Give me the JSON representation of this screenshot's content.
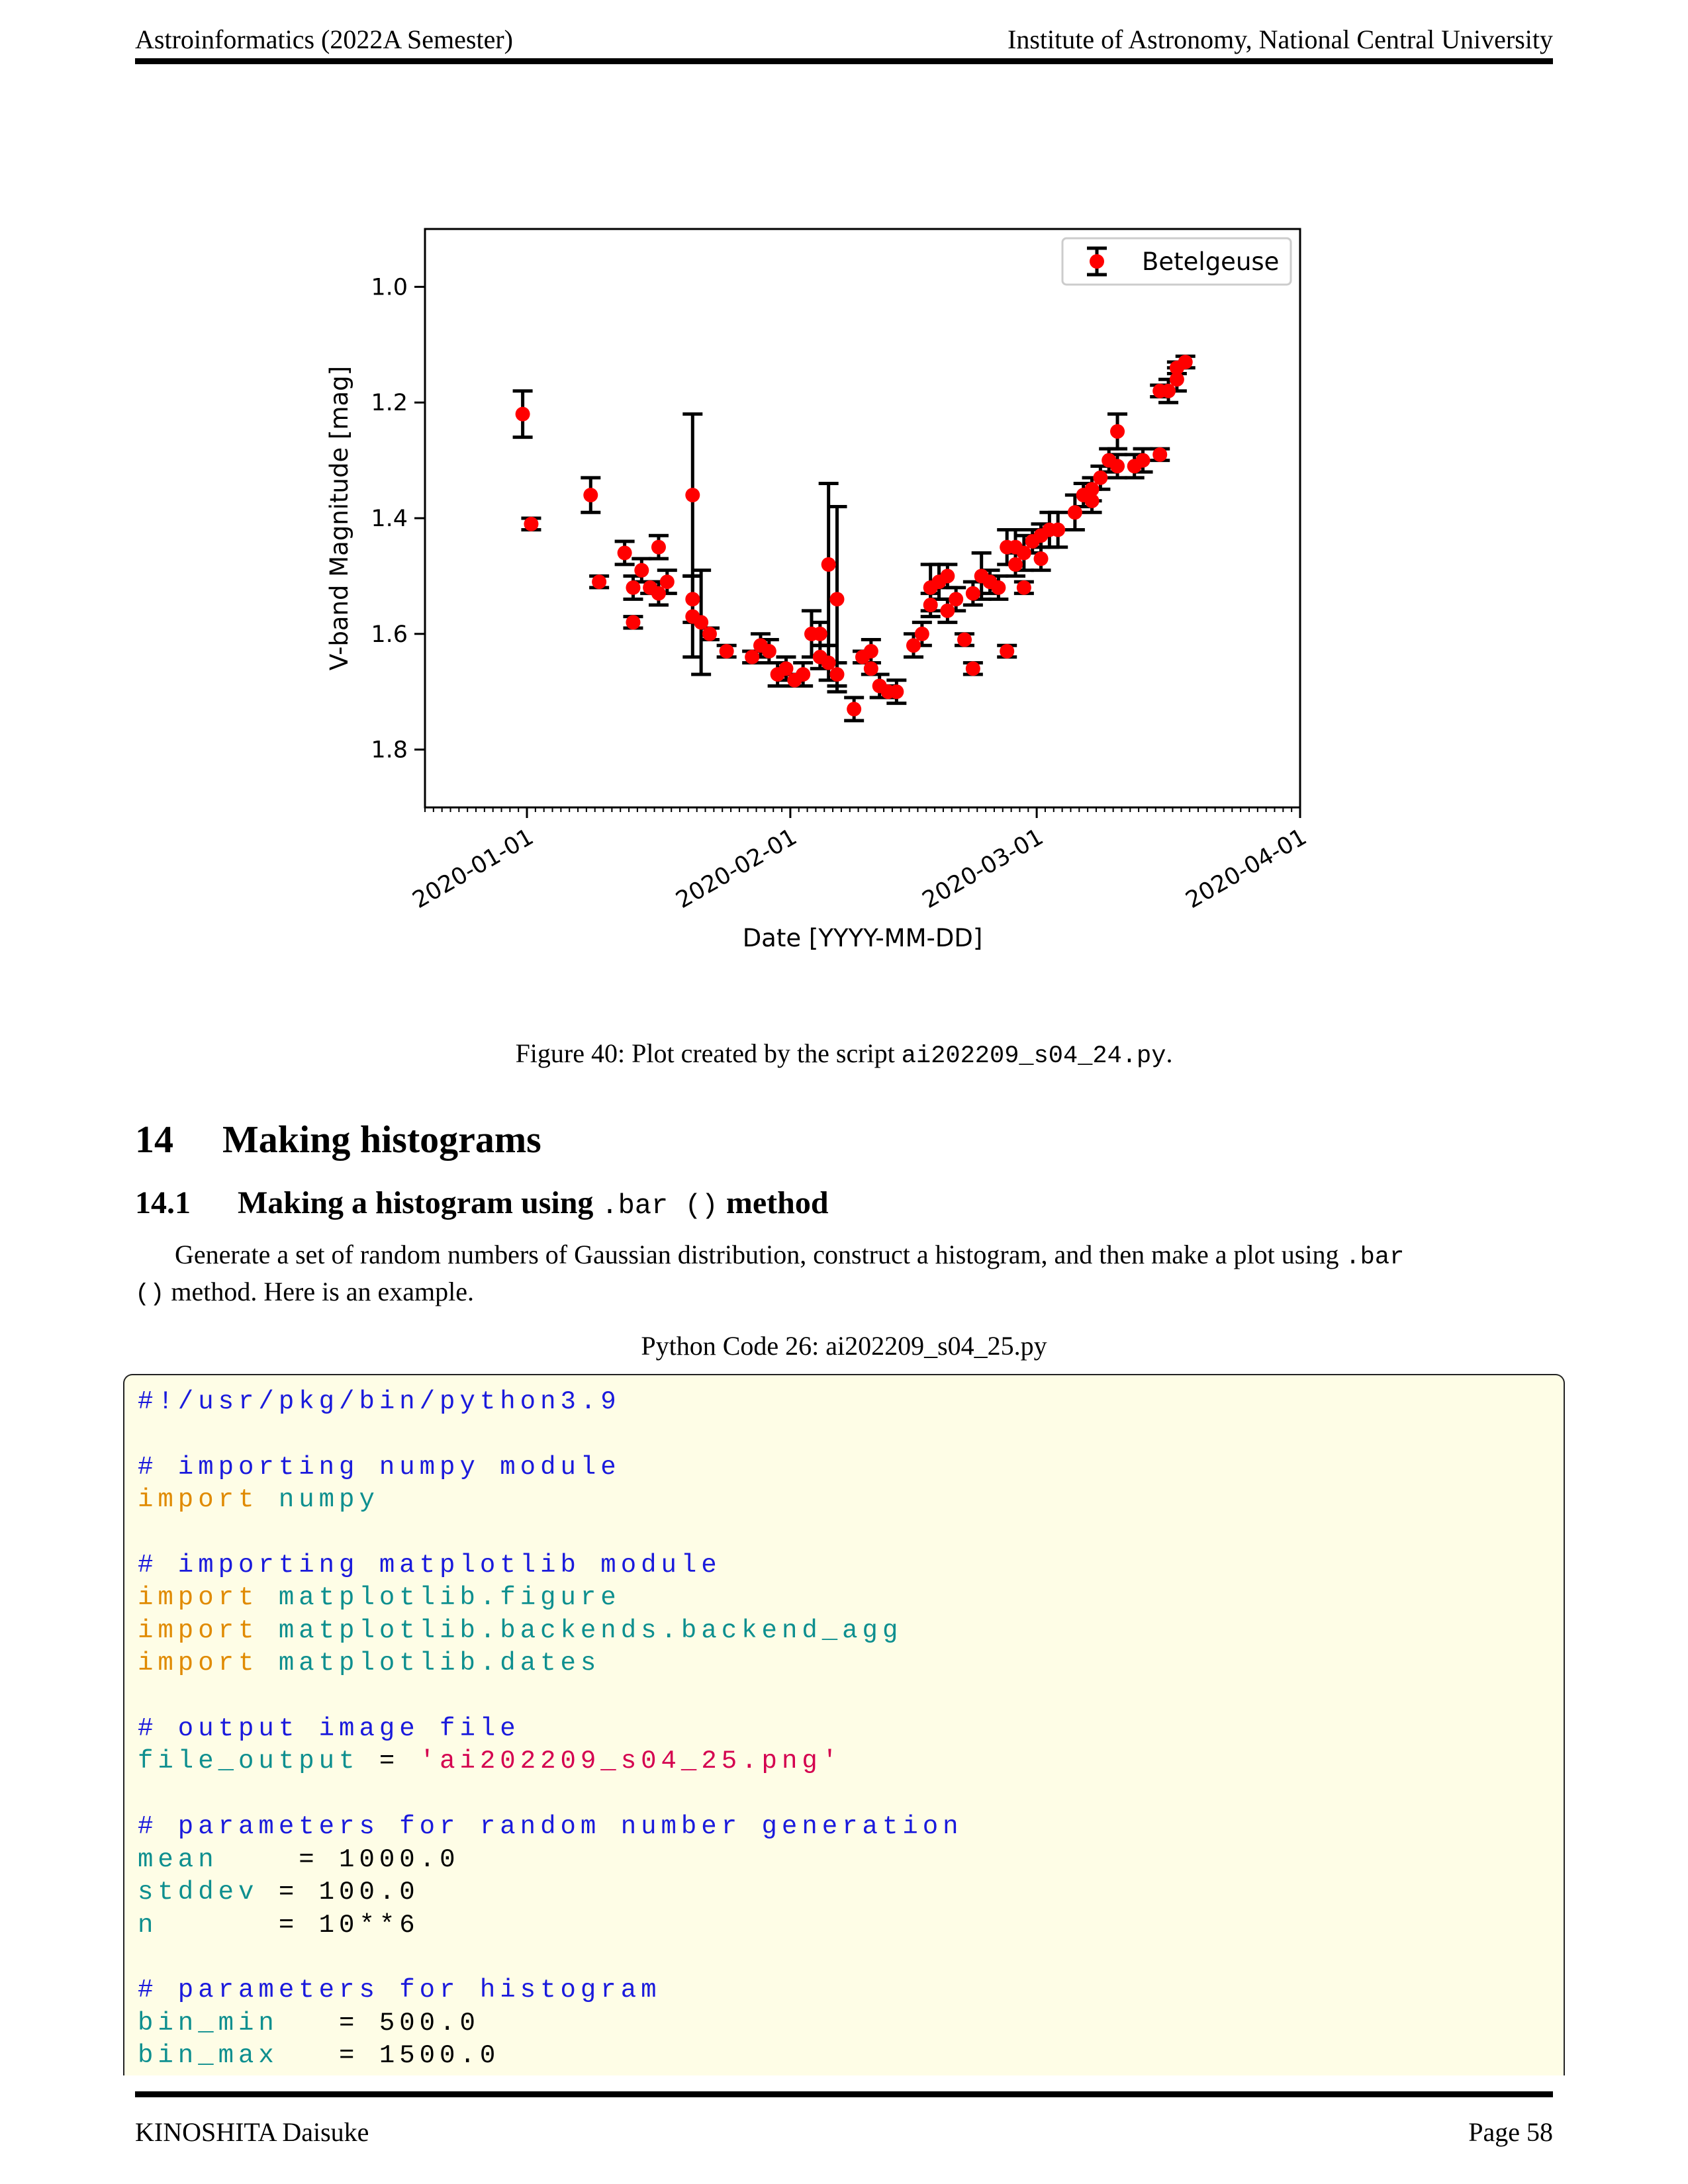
{
  "header": {
    "left": "Astroinformatics (2022A Semester)",
    "right": "Institute of Astronomy, National Central University"
  },
  "figure": {
    "caption_prefix": "Figure 40: Plot created by the script ",
    "caption_script": "ai202209_s04_24.py",
    "caption_suffix": "."
  },
  "chart_data": {
    "type": "scatter",
    "title": "",
    "xlabel": "Date [YYYY-MM-DD]",
    "ylabel": "V-band Magnitude [mag]",
    "x_ticks": [
      "2020-01-01",
      "2020-02-01",
      "2020-03-01",
      "2020-04-01"
    ],
    "y_ticks": [
      "1.0",
      "1.2",
      "1.4",
      "1.6",
      "1.8"
    ],
    "xlim": [
      "2019-12-20",
      "2020-04-01"
    ],
    "ylim": [
      1.9,
      0.9
    ],
    "y_inverted": true,
    "grid": false,
    "legend_position": "top-right",
    "marker_color": "#ff0000",
    "errorbar_color": "#000000",
    "series": [
      {
        "name": "Betelgeuse",
        "points": [
          {
            "x": "2019-12-31",
            "y": 1.22,
            "err": 0.04
          },
          {
            "x": "2020-01-01",
            "y": 1.41,
            "err": 0.01
          },
          {
            "x": "2020-01-08",
            "y": 1.36,
            "err": 0.03
          },
          {
            "x": "2020-01-09",
            "y": 1.51,
            "err": 0.01
          },
          {
            "x": "2020-01-12",
            "y": 1.46,
            "err": 0.02
          },
          {
            "x": "2020-01-13",
            "y": 1.58,
            "err": 0.01
          },
          {
            "x": "2020-01-13",
            "y": 1.52,
            "err": 0.02
          },
          {
            "x": "2020-01-14",
            "y": 1.49,
            "err": 0.02
          },
          {
            "x": "2020-01-15",
            "y": 1.52,
            "err": 0.01
          },
          {
            "x": "2020-01-16",
            "y": 1.45,
            "err": 0.02
          },
          {
            "x": "2020-01-16",
            "y": 1.53,
            "err": 0.02
          },
          {
            "x": "2020-01-17",
            "y": 1.51,
            "err": 0.02
          },
          {
            "x": "2020-01-20",
            "y": 1.36,
            "err": 0.14
          },
          {
            "x": "2020-01-20",
            "y": 1.54,
            "err": 0.04
          },
          {
            "x": "2020-01-20",
            "y": 1.57,
            "err": 0.07
          },
          {
            "x": "2020-01-21",
            "y": 1.58,
            "err": 0.09
          },
          {
            "x": "2020-01-22",
            "y": 1.6,
            "err": 0.01
          },
          {
            "x": "2020-01-24",
            "y": 1.63,
            "err": 0.01
          },
          {
            "x": "2020-01-27",
            "y": 1.64,
            "err": 0.01
          },
          {
            "x": "2020-01-28",
            "y": 1.62,
            "err": 0.02
          },
          {
            "x": "2020-01-29",
            "y": 1.63,
            "err": 0.02
          },
          {
            "x": "2020-01-30",
            "y": 1.67,
            "err": 0.02
          },
          {
            "x": "2020-01-31",
            "y": 1.66,
            "err": 0.02
          },
          {
            "x": "2020-02-01",
            "y": 1.68,
            "err": 0.01
          },
          {
            "x": "2020-02-02",
            "y": 1.67,
            "err": 0.02
          },
          {
            "x": "2020-02-03",
            "y": 1.6,
            "err": 0.04
          },
          {
            "x": "2020-02-04",
            "y": 1.6,
            "err": 0.02
          },
          {
            "x": "2020-02-04",
            "y": 1.64,
            "err": 0.02
          },
          {
            "x": "2020-02-05",
            "y": 1.48,
            "err": 0.14
          },
          {
            "x": "2020-02-05",
            "y": 1.65,
            "err": 0.03
          },
          {
            "x": "2020-02-06",
            "y": 1.54,
            "err": 0.16
          },
          {
            "x": "2020-02-06",
            "y": 1.67,
            "err": 0.02
          },
          {
            "x": "2020-02-08",
            "y": 1.73,
            "err": 0.02
          },
          {
            "x": "2020-02-09",
            "y": 1.64,
            "err": 0.01
          },
          {
            "x": "2020-02-10",
            "y": 1.63,
            "err": 0.02
          },
          {
            "x": "2020-02-10",
            "y": 1.66,
            "err": 0.01
          },
          {
            "x": "2020-02-11",
            "y": 1.69,
            "err": 0.02
          },
          {
            "x": "2020-02-12",
            "y": 1.7,
            "err": 0.01
          },
          {
            "x": "2020-02-13",
            "y": 1.7,
            "err": 0.02
          },
          {
            "x": "2020-02-15",
            "y": 1.62,
            "err": 0.02
          },
          {
            "x": "2020-02-16",
            "y": 1.6,
            "err": 0.02
          },
          {
            "x": "2020-02-17",
            "y": 1.55,
            "err": 0.02
          },
          {
            "x": "2020-02-17",
            "y": 1.52,
            "err": 0.04
          },
          {
            "x": "2020-02-18",
            "y": 1.51,
            "err": 0.03
          },
          {
            "x": "2020-02-19",
            "y": 1.56,
            "err": 0.02
          },
          {
            "x": "2020-02-19",
            "y": 1.5,
            "err": 0.02
          },
          {
            "x": "2020-02-20",
            "y": 1.54,
            "err": 0.02
          },
          {
            "x": "2020-02-21",
            "y": 1.61,
            "err": 0.01
          },
          {
            "x": "2020-02-22",
            "y": 1.66,
            "err": 0.01
          },
          {
            "x": "2020-02-22",
            "y": 1.53,
            "err": 0.02
          },
          {
            "x": "2020-02-23",
            "y": 1.5,
            "err": 0.04
          },
          {
            "x": "2020-02-24",
            "y": 1.51,
            "err": 0.02
          },
          {
            "x": "2020-02-25",
            "y": 1.52,
            "err": 0.02
          },
          {
            "x": "2020-02-26",
            "y": 1.45,
            "err": 0.03
          },
          {
            "x": "2020-02-26",
            "y": 1.63,
            "err": 0.01
          },
          {
            "x": "2020-02-27",
            "y": 1.48,
            "err": 0.02
          },
          {
            "x": "2020-02-27",
            "y": 1.45,
            "err": 0.03
          },
          {
            "x": "2020-02-28",
            "y": 1.52,
            "err": 0.01
          },
          {
            "x": "2020-02-28",
            "y": 1.46,
            "err": 0.03
          },
          {
            "x": "2020-02-29",
            "y": 1.44,
            "err": 0.02
          },
          {
            "x": "2020-03-01",
            "y": 1.47,
            "err": 0.02
          },
          {
            "x": "2020-03-01",
            "y": 1.43,
            "err": 0.02
          },
          {
            "x": "2020-03-02",
            "y": 1.42,
            "err": 0.03
          },
          {
            "x": "2020-03-03",
            "y": 1.42,
            "err": 0.03
          },
          {
            "x": "2020-03-05",
            "y": 1.39,
            "err": 0.03
          },
          {
            "x": "2020-03-06",
            "y": 1.36,
            "err": 0.02
          },
          {
            "x": "2020-03-07",
            "y": 1.35,
            "err": 0.02
          },
          {
            "x": "2020-03-07",
            "y": 1.37,
            "err": 0.02
          },
          {
            "x": "2020-03-08",
            "y": 1.33,
            "err": 0.02
          },
          {
            "x": "2020-03-09",
            "y": 1.3,
            "err": 0.02
          },
          {
            "x": "2020-03-10",
            "y": 1.31,
            "err": 0.02
          },
          {
            "x": "2020-03-10",
            "y": 1.25,
            "err": 0.03
          },
          {
            "x": "2020-03-12",
            "y": 1.31,
            "err": 0.02
          },
          {
            "x": "2020-03-13",
            "y": 1.3,
            "err": 0.02
          },
          {
            "x": "2020-03-15",
            "y": 1.29,
            "err": 0.01
          },
          {
            "x": "2020-03-15",
            "y": 1.18,
            "err": 0.01
          },
          {
            "x": "2020-03-16",
            "y": 1.18,
            "err": 0.02
          },
          {
            "x": "2020-03-17",
            "y": 1.16,
            "err": 0.02
          },
          {
            "x": "2020-03-17",
            "y": 1.14,
            "err": 0.01
          },
          {
            "x": "2020-03-18",
            "y": 1.13,
            "err": 0.01
          }
        ]
      }
    ]
  },
  "section": {
    "number": "14",
    "title": "Making histograms"
  },
  "subsection": {
    "number": "14.1",
    "title_prefix": "Making a histogram using ",
    "title_code": ".bar ()",
    "title_suffix": " method"
  },
  "paragraph": {
    "text_1": "Generate a set of random numbers of Gaussian distribution, construct a histogram, and then make a plot using ",
    "code_1": ".bar",
    "code_2": "()",
    "text_2": " method. Here is an example."
  },
  "code_caption": "Python Code 26: ai202209_s04_25.py",
  "code": {
    "line_shebang": "#!/usr/pkg/bin/python3.9",
    "comment_numpy": "# importing numpy module",
    "kw_import": "import",
    "mod_numpy": "numpy",
    "comment_matplotlib": "# importing matplotlib module",
    "mod_figure": "matplotlib.figure",
    "mod_backend": "matplotlib.backends.backend_agg",
    "mod_dates": "matplotlib.dates",
    "comment_output": "# output image file",
    "var_file_output": "file_output",
    "eq": " = ",
    "str_file_output": "'ai202209_s04_25.png'",
    "comment_random": "# parameters for random number generation",
    "var_mean": "mean",
    "assign_mean": "    = 1000.0",
    "var_stddev": "stddev",
    "assign_stddev": " = 100.0",
    "var_n": "n",
    "assign_n": "      = 10**6",
    "comment_hist": "# parameters for histogram",
    "var_bin_min": "bin_min",
    "assign_bin_min": "   = 500.0",
    "var_bin_max": "bin_max",
    "assign_bin_max": "   = 1500.0"
  },
  "footer": {
    "left": "KINOSHITA Daisuke",
    "right": "Page 58"
  }
}
